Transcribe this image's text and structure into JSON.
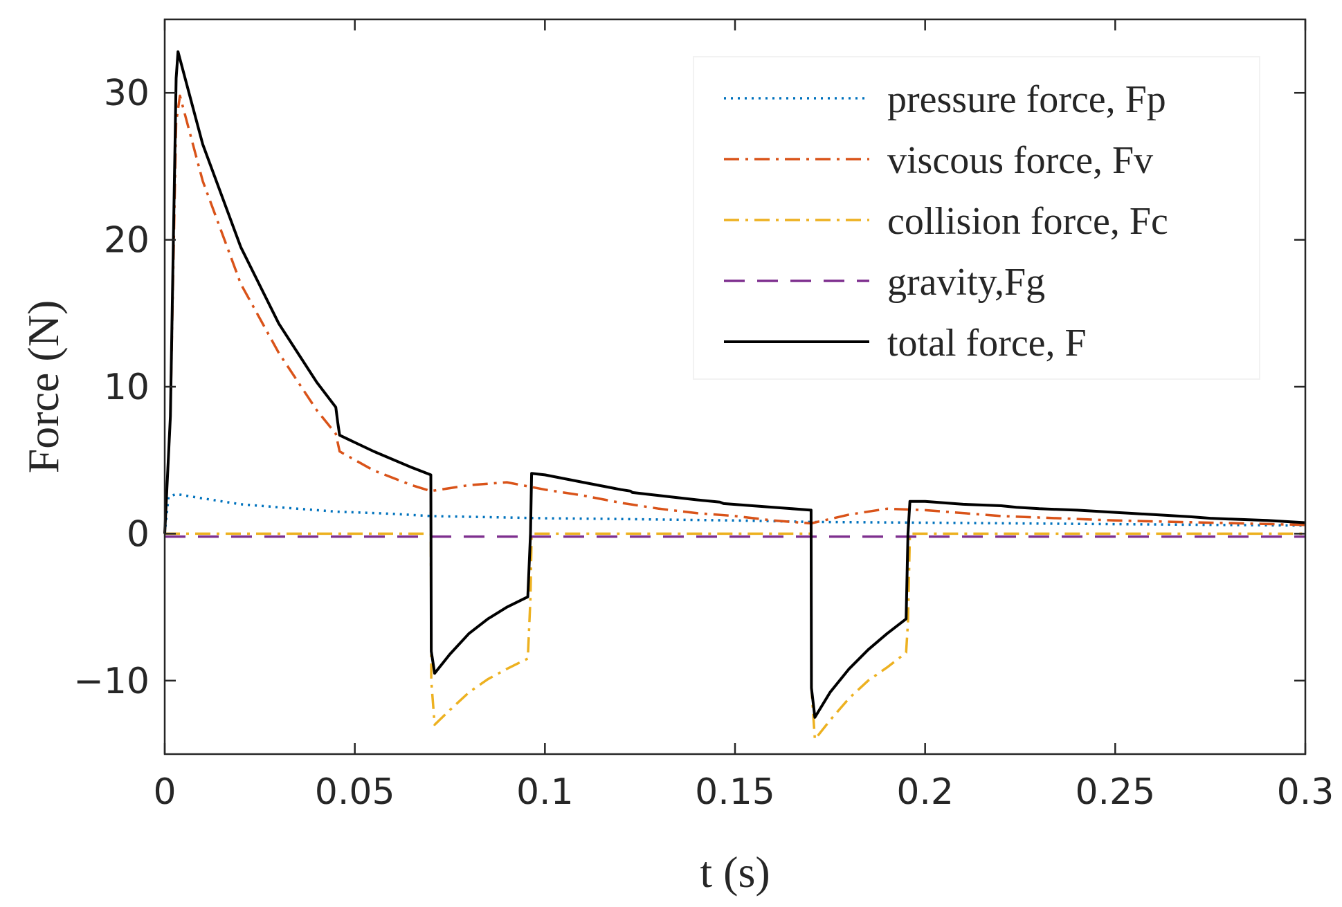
{
  "chart_data": {
    "type": "line",
    "xlabel": "t (s)",
    "ylabel": "Force (N)",
    "xlim": [
      0,
      0.3
    ],
    "ylim": [
      -15,
      35
    ],
    "xticks": [
      0,
      0.05,
      0.1,
      0.15,
      0.2,
      0.25,
      0.3
    ],
    "xtick_labels": [
      "0",
      "0.05",
      "0.1",
      "0.15",
      "0.2",
      "0.25",
      "0.3"
    ],
    "yticks": [
      -10,
      0,
      10,
      20,
      30
    ],
    "ytick_labels": [
      "−10",
      "0",
      "10",
      "20",
      "30"
    ],
    "grid": false,
    "legend_position": "top-right",
    "series": [
      {
        "name": "pressure force, Fp",
        "style": "dotted",
        "color": "#0072BD",
        "points": [
          [
            0,
            0
          ],
          [
            0.001,
            2.5
          ],
          [
            0.003,
            2.7
          ],
          [
            0.01,
            2.4
          ],
          [
            0.02,
            2.0
          ],
          [
            0.03,
            1.8
          ],
          [
            0.04,
            1.6
          ],
          [
            0.045,
            1.5
          ],
          [
            0.06,
            1.35
          ],
          [
            0.07,
            1.2
          ],
          [
            0.08,
            1.15
          ],
          [
            0.09,
            1.1
          ],
          [
            0.1,
            1.05
          ],
          [
            0.12,
            1.0
          ],
          [
            0.15,
            0.9
          ],
          [
            0.17,
            0.8
          ],
          [
            0.2,
            0.75
          ],
          [
            0.25,
            0.65
          ],
          [
            0.3,
            0.55
          ]
        ]
      },
      {
        "name": "viscous force, Fv",
        "style": "dashdot",
        "color": "#D95319",
        "points": [
          [
            0,
            0
          ],
          [
            0.0015,
            8
          ],
          [
            0.003,
            28
          ],
          [
            0.004,
            29.8
          ],
          [
            0.01,
            24
          ],
          [
            0.02,
            17
          ],
          [
            0.03,
            12.3
          ],
          [
            0.04,
            8.4
          ],
          [
            0.045,
            6.8
          ],
          [
            0.046,
            5.6
          ],
          [
            0.055,
            4.3
          ],
          [
            0.065,
            3.3
          ],
          [
            0.07,
            2.9
          ],
          [
            0.08,
            3.3
          ],
          [
            0.09,
            3.5
          ],
          [
            0.1,
            3.0
          ],
          [
            0.11,
            2.6
          ],
          [
            0.12,
            2.1
          ],
          [
            0.13,
            1.7
          ],
          [
            0.14,
            1.4
          ],
          [
            0.15,
            1.2
          ],
          [
            0.16,
            0.9
          ],
          [
            0.17,
            0.7
          ],
          [
            0.18,
            1.3
          ],
          [
            0.19,
            1.7
          ],
          [
            0.2,
            1.6
          ],
          [
            0.22,
            1.2
          ],
          [
            0.25,
            0.9
          ],
          [
            0.3,
            0.6
          ]
        ]
      },
      {
        "name": "collision force, Fc",
        "style": "dashdot",
        "color": "#EDB120",
        "points": [
          [
            0,
            0
          ],
          [
            0.07,
            0
          ],
          [
            0.0701,
            -10.0
          ],
          [
            0.071,
            -13.0
          ],
          [
            0.075,
            -12.0
          ],
          [
            0.08,
            -10.8
          ],
          [
            0.085,
            -9.9
          ],
          [
            0.09,
            -9.2
          ],
          [
            0.0955,
            -8.5
          ],
          [
            0.0962,
            -4.3
          ],
          [
            0.0965,
            0
          ],
          [
            0.17,
            0
          ],
          [
            0.1701,
            -10.5
          ],
          [
            0.171,
            -14.0
          ],
          [
            0.175,
            -12.7
          ],
          [
            0.18,
            -11.2
          ],
          [
            0.185,
            -10.0
          ],
          [
            0.19,
            -9.1
          ],
          [
            0.195,
            -8.1
          ],
          [
            0.1955,
            -6.0
          ],
          [
            0.196,
            0
          ],
          [
            0.3,
            0
          ]
        ]
      },
      {
        "name": "gravity,Fg",
        "style": "dashed",
        "color": "#7E2F8E",
        "points": [
          [
            0,
            -0.2
          ],
          [
            0.3,
            -0.2
          ]
        ]
      },
      {
        "name": "total force, F",
        "style": "solid",
        "color": "#000000",
        "points": [
          [
            0,
            0
          ],
          [
            0.0015,
            8
          ],
          [
            0.003,
            31
          ],
          [
            0.0035,
            32.8
          ],
          [
            0.01,
            26.5
          ],
          [
            0.02,
            19.5
          ],
          [
            0.03,
            14.3
          ],
          [
            0.04,
            10.3
          ],
          [
            0.045,
            8.6
          ],
          [
            0.0455,
            7.6
          ],
          [
            0.046,
            6.7
          ],
          [
            0.055,
            5.6
          ],
          [
            0.065,
            4.5
          ],
          [
            0.07,
            4.0
          ],
          [
            0.0701,
            -8.0
          ],
          [
            0.071,
            -9.5
          ],
          [
            0.075,
            -8.2
          ],
          [
            0.08,
            -6.8
          ],
          [
            0.085,
            -5.8
          ],
          [
            0.09,
            -5.0
          ],
          [
            0.0955,
            -4.3
          ],
          [
            0.0962,
            0
          ],
          [
            0.0965,
            4.1
          ],
          [
            0.1,
            4.0
          ],
          [
            0.11,
            3.5
          ],
          [
            0.12,
            3.0
          ],
          [
            0.1225,
            2.9
          ],
          [
            0.123,
            2.8
          ],
          [
            0.13,
            2.6
          ],
          [
            0.14,
            2.3
          ],
          [
            0.146,
            2.15
          ],
          [
            0.147,
            2.05
          ],
          [
            0.16,
            1.8
          ],
          [
            0.17,
            1.6
          ],
          [
            0.1701,
            -10.5
          ],
          [
            0.171,
            -12.5
          ],
          [
            0.175,
            -10.8
          ],
          [
            0.18,
            -9.2
          ],
          [
            0.185,
            -7.9
          ],
          [
            0.19,
            -6.8
          ],
          [
            0.195,
            -5.8
          ],
          [
            0.1955,
            0
          ],
          [
            0.196,
            2.2
          ],
          [
            0.2,
            2.2
          ],
          [
            0.21,
            2.0
          ],
          [
            0.22,
            1.9
          ],
          [
            0.224,
            1.8
          ],
          [
            0.23,
            1.7
          ],
          [
            0.24,
            1.6
          ],
          [
            0.25,
            1.45
          ],
          [
            0.26,
            1.3
          ],
          [
            0.27,
            1.15
          ],
          [
            0.275,
            1.05
          ],
          [
            0.28,
            1.0
          ],
          [
            0.29,
            0.9
          ],
          [
            0.3,
            0.75
          ]
        ]
      }
    ]
  }
}
